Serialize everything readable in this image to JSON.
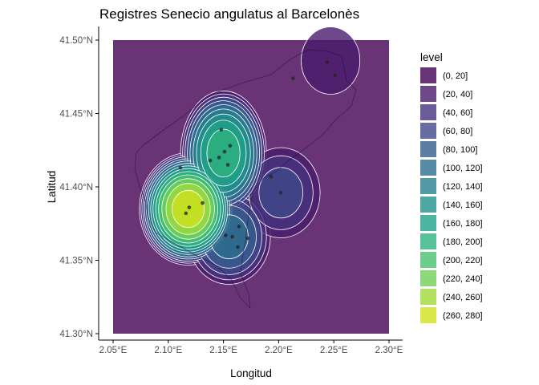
{
  "chart_data": {
    "type": "heatmap",
    "subtype": "filled-density-contour-map",
    "title": "Registres Senecio angulatus al Barcelonès",
    "xlabel": "Longitud",
    "ylabel": "Latitud",
    "xlim": [
      2.05,
      2.3
    ],
    "ylim": [
      41.3,
      41.5
    ],
    "x_ticks": [
      2.05,
      2.1,
      2.15,
      2.2,
      2.25,
      2.3
    ],
    "y_ticks": [
      41.3,
      41.35,
      41.4,
      41.45,
      41.5
    ],
    "x_tick_labels": [
      "2.05°E",
      "2.10°E",
      "2.15°E",
      "2.20°E",
      "2.25°E",
      "2.30°E"
    ],
    "y_tick_labels": [
      "41.30°N",
      "41.35°N",
      "41.40°N",
      "41.45°N",
      "41.50°N"
    ],
    "grid": false,
    "legend": {
      "title": "level",
      "placement": "right",
      "entries": [
        {
          "label": "(0, 20]",
          "color": "#440154"
        },
        {
          "label": "(20, 40]",
          "color": "#481B6D"
        },
        {
          "label": "(40, 60]",
          "color": "#46337E"
        },
        {
          "label": "(60, 80]",
          "color": "#3F4889"
        },
        {
          "label": "(80, 100]",
          "color": "#365C8D"
        },
        {
          "label": "(100, 120]",
          "color": "#2E6E8E"
        },
        {
          "label": "(120, 140]",
          "color": "#277F8E"
        },
        {
          "label": "(140, 160]",
          "color": "#21918C"
        },
        {
          "label": "(160, 180]",
          "color": "#1FA187"
        },
        {
          "label": "(180, 200]",
          "color": "#2DB27D"
        },
        {
          "label": "(200, 220]",
          "color": "#4AC16D"
        },
        {
          "label": "(220, 240]",
          "color": "#71CF57"
        },
        {
          "label": "(240, 260]",
          "color": "#9FDA3A"
        },
        {
          "label": "(260, 280]",
          "color": "#CFE11C"
        }
      ]
    },
    "fill_alpha": 0.8,
    "density_peaks": [
      {
        "lon": 2.118,
        "lat": 41.385,
        "level": 270
      },
      {
        "lon": 2.15,
        "lat": 41.423,
        "level": 190
      },
      {
        "lon": 2.155,
        "lat": 41.366,
        "level": 110
      },
      {
        "lon": 2.202,
        "lat": 41.396,
        "level": 70
      },
      {
        "lon": 2.247,
        "lat": 41.486,
        "level": 30
      }
    ],
    "points": [
      {
        "lon": 2.111,
        "lat": 41.413
      },
      {
        "lon": 2.116,
        "lat": 41.382
      },
      {
        "lon": 2.119,
        "lat": 41.386
      },
      {
        "lon": 2.131,
        "lat": 41.389
      },
      {
        "lon": 2.138,
        "lat": 41.418
      },
      {
        "lon": 2.146,
        "lat": 41.42
      },
      {
        "lon": 2.151,
        "lat": 41.424
      },
      {
        "lon": 2.156,
        "lat": 41.428
      },
      {
        "lon": 2.148,
        "lat": 41.439
      },
      {
        "lon": 2.154,
        "lat": 41.415
      },
      {
        "lon": 2.152,
        "lat": 41.367
      },
      {
        "lon": 2.158,
        "lat": 41.366
      },
      {
        "lon": 2.164,
        "lat": 41.373
      },
      {
        "lon": 2.163,
        "lat": 41.359
      },
      {
        "lon": 2.172,
        "lat": 41.365
      },
      {
        "lon": 2.202,
        "lat": 41.396
      },
      {
        "lon": 2.193,
        "lat": 41.407
      },
      {
        "lon": 2.213,
        "lat": 41.474
      },
      {
        "lon": 2.244,
        "lat": 41.485
      },
      {
        "lon": 2.251,
        "lat": 41.476
      }
    ],
    "colors": {
      "contour_line": "#ffffff",
      "point": "#222222",
      "boundary": "#1f0a33",
      "axis": "#000000"
    }
  }
}
